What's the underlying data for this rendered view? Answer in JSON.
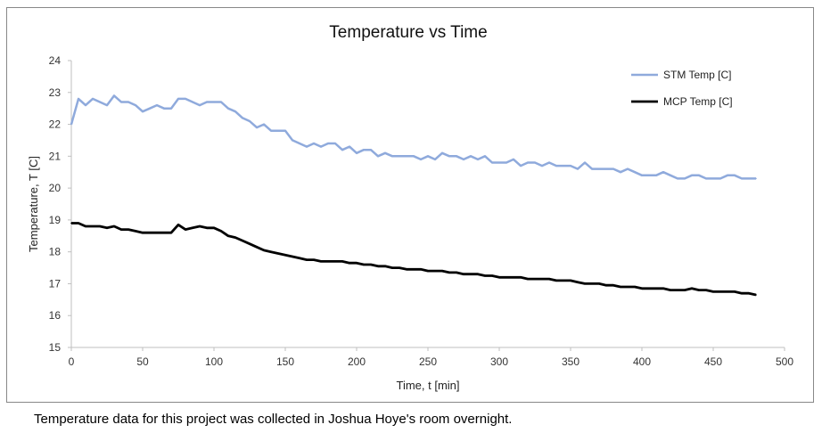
{
  "caption": "Temperature data for this project was collected in Joshua Hoye's room overnight.",
  "chart_data": {
    "type": "line",
    "title": "Temperature vs Time",
    "xlabel": "Time, t [min]",
    "ylabel": "Temperature, T [C]",
    "xlim": [
      0,
      500
    ],
    "ylim": [
      15,
      24
    ],
    "xticks": [
      0,
      50,
      100,
      150,
      200,
      250,
      300,
      350,
      400,
      450,
      500
    ],
    "yticks": [
      15,
      16,
      17,
      18,
      19,
      20,
      21,
      22,
      23,
      24
    ],
    "grid": false,
    "legend_position": "top-right",
    "series": [
      {
        "name": "STM Temp [C]",
        "color": "#8FAADC",
        "x": [
          0,
          5,
          10,
          15,
          20,
          25,
          30,
          35,
          40,
          45,
          50,
          55,
          60,
          65,
          70,
          75,
          80,
          85,
          90,
          95,
          100,
          105,
          110,
          115,
          120,
          125,
          130,
          135,
          140,
          145,
          150,
          155,
          160,
          165,
          170,
          175,
          180,
          185,
          190,
          195,
          200,
          205,
          210,
          215,
          220,
          225,
          230,
          235,
          240,
          245,
          250,
          255,
          260,
          265,
          270,
          275,
          280,
          285,
          290,
          295,
          300,
          305,
          310,
          315,
          320,
          325,
          330,
          335,
          340,
          345,
          350,
          355,
          360,
          365,
          370,
          375,
          380,
          385,
          390,
          395,
          400,
          405,
          410,
          415,
          420,
          425,
          430,
          435,
          440,
          445,
          450,
          455,
          460,
          465,
          470,
          475,
          480
        ],
        "values": [
          22.0,
          22.8,
          22.6,
          22.8,
          22.7,
          22.6,
          22.9,
          22.7,
          22.7,
          22.6,
          22.4,
          22.5,
          22.6,
          22.5,
          22.5,
          22.8,
          22.8,
          22.7,
          22.6,
          22.7,
          22.7,
          22.7,
          22.5,
          22.4,
          22.2,
          22.1,
          21.9,
          22.0,
          21.8,
          21.8,
          21.8,
          21.5,
          21.4,
          21.3,
          21.4,
          21.3,
          21.4,
          21.4,
          21.2,
          21.3,
          21.1,
          21.2,
          21.2,
          21.0,
          21.1,
          21.0,
          21.0,
          21.0,
          21.0,
          20.9,
          21.0,
          20.9,
          21.1,
          21.0,
          21.0,
          20.9,
          21.0,
          20.9,
          21.0,
          20.8,
          20.8,
          20.8,
          20.9,
          20.7,
          20.8,
          20.8,
          20.7,
          20.8,
          20.7,
          20.7,
          20.7,
          20.6,
          20.8,
          20.6,
          20.6,
          20.6,
          20.6,
          20.5,
          20.6,
          20.5,
          20.4,
          20.4,
          20.4,
          20.5,
          20.4,
          20.3,
          20.3,
          20.4,
          20.4,
          20.3,
          20.3,
          20.3,
          20.4,
          20.4,
          20.3,
          20.3,
          20.3
        ]
      },
      {
        "name": "MCP Temp [C]",
        "color": "#000000",
        "x": [
          0,
          5,
          10,
          15,
          20,
          25,
          30,
          35,
          40,
          45,
          50,
          55,
          60,
          65,
          70,
          75,
          80,
          85,
          90,
          95,
          100,
          105,
          110,
          115,
          120,
          125,
          130,
          135,
          140,
          145,
          150,
          155,
          160,
          165,
          170,
          175,
          180,
          185,
          190,
          195,
          200,
          205,
          210,
          215,
          220,
          225,
          230,
          235,
          240,
          245,
          250,
          255,
          260,
          265,
          270,
          275,
          280,
          285,
          290,
          295,
          300,
          305,
          310,
          315,
          320,
          325,
          330,
          335,
          340,
          345,
          350,
          355,
          360,
          365,
          370,
          375,
          380,
          385,
          390,
          395,
          400,
          405,
          410,
          415,
          420,
          425,
          430,
          435,
          440,
          445,
          450,
          455,
          460,
          465,
          470,
          475,
          480
        ],
        "values": [
          18.9,
          18.9,
          18.8,
          18.8,
          18.8,
          18.75,
          18.8,
          18.7,
          18.7,
          18.65,
          18.6,
          18.6,
          18.6,
          18.6,
          18.6,
          18.85,
          18.7,
          18.75,
          18.8,
          18.75,
          18.75,
          18.65,
          18.5,
          18.45,
          18.35,
          18.25,
          18.15,
          18.05,
          18.0,
          17.95,
          17.9,
          17.85,
          17.8,
          17.75,
          17.75,
          17.7,
          17.7,
          17.7,
          17.7,
          17.65,
          17.65,
          17.6,
          17.6,
          17.55,
          17.55,
          17.5,
          17.5,
          17.45,
          17.45,
          17.45,
          17.4,
          17.4,
          17.4,
          17.35,
          17.35,
          17.3,
          17.3,
          17.3,
          17.25,
          17.25,
          17.2,
          17.2,
          17.2,
          17.2,
          17.15,
          17.15,
          17.15,
          17.15,
          17.1,
          17.1,
          17.1,
          17.05,
          17.0,
          17.0,
          17.0,
          16.95,
          16.95,
          16.9,
          16.9,
          16.9,
          16.85,
          16.85,
          16.85,
          16.85,
          16.8,
          16.8,
          16.8,
          16.85,
          16.8,
          16.8,
          16.75,
          16.75,
          16.75,
          16.75,
          16.7,
          16.7,
          16.65
        ]
      }
    ]
  }
}
